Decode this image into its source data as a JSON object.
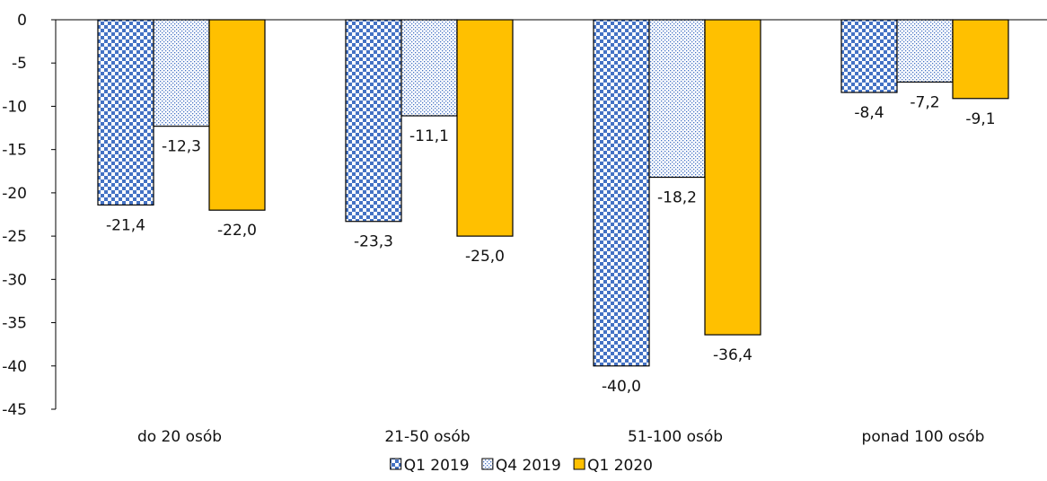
{
  "chart_data": {
    "type": "bar",
    "categories": [
      "do 20 osób",
      "21-50 osób",
      "51-100 osób",
      "ponad 100 osób"
    ],
    "series": [
      {
        "name": "Q1 2019",
        "values": [
          -21.4,
          -23.3,
          -40.0,
          -8.4
        ],
        "labels": [
          "-21,4",
          "-23,3",
          "-40,0",
          "-8,4"
        ],
        "pattern": "checker",
        "color": "#4472C4"
      },
      {
        "name": "Q4 2019",
        "values": [
          -12.3,
          -11.1,
          -18.2,
          -7.2
        ],
        "labels": [
          "-12,3",
          "-11,1",
          "-18,2",
          "-7,2"
        ],
        "pattern": "dots",
        "color": "#4472C4"
      },
      {
        "name": "Q1 2020",
        "values": [
          -22.0,
          -25.0,
          -36.4,
          -9.1
        ],
        "labels": [
          "-22,0",
          "-25,0",
          "-36,4",
          "-9,1"
        ],
        "pattern": "solid",
        "color": "#FFC000"
      }
    ],
    "ylim": [
      -45,
      0
    ],
    "yticks": [
      0,
      -5,
      -10,
      -15,
      -20,
      -25,
      -30,
      -35,
      -40,
      -45
    ],
    "ytick_labels": [
      "0",
      "-5",
      "-10",
      "-15",
      "-20",
      "-25",
      "-30",
      "-35",
      "-40",
      "-45"
    ],
    "grid": false,
    "legend_position": "bottom",
    "title": "",
    "xlabel": "",
    "ylabel": ""
  }
}
